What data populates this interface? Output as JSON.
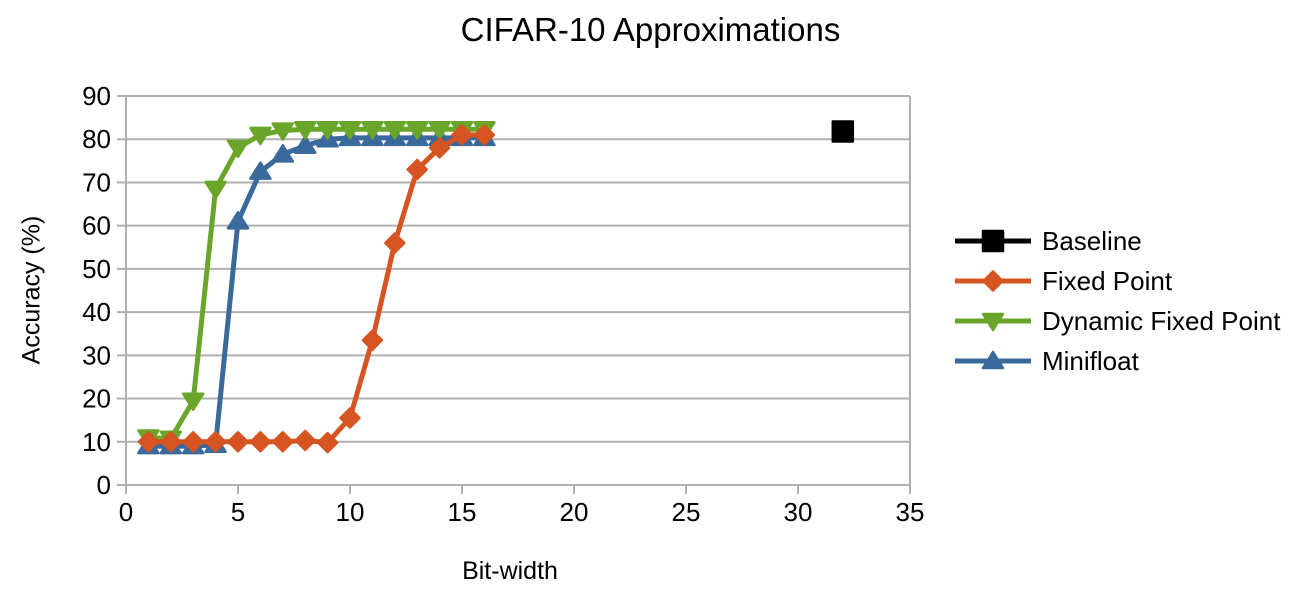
{
  "chart_data": {
    "type": "line",
    "title": "CIFAR-10 Approximations",
    "xlabel": "Bit-width",
    "ylabel": "Accuracy (%)",
    "xlim": [
      0,
      35
    ],
    "ylim": [
      0,
      90
    ],
    "x_ticks": [
      0,
      5,
      10,
      15,
      20,
      25,
      30,
      35
    ],
    "y_ticks": [
      0,
      10,
      20,
      30,
      40,
      50,
      60,
      70,
      80,
      90
    ],
    "grid": "horizontal-only",
    "legend_position": "right",
    "axis_color": "#b0b0b0",
    "text_color": "#000000",
    "background": "#ffffff",
    "series": [
      {
        "name": "Baseline",
        "color": "#000000",
        "marker": "square",
        "x": [
          32
        ],
        "y": [
          81.8
        ]
      },
      {
        "name": "Fixed Point",
        "color": "#d65422",
        "marker": "diamond",
        "x": [
          1,
          2,
          3,
          4,
          5,
          6,
          7,
          8,
          9,
          10,
          11,
          12,
          13,
          14,
          15,
          16
        ],
        "y": [
          10,
          10,
          10,
          10,
          10,
          10,
          10,
          10.3,
          9.8,
          15.5,
          33.5,
          56,
          73,
          78,
          81,
          81
        ]
      },
      {
        "name": "Dynamic Fixed Point",
        "color": "#69a528",
        "marker": "triangle-down",
        "x": [
          1,
          2,
          3,
          4,
          5,
          6,
          7,
          8,
          9,
          10,
          11,
          12,
          13,
          14,
          15,
          16
        ],
        "y": [
          11,
          10.7,
          19.5,
          68.5,
          78,
          81,
          82,
          82.3,
          82.3,
          82.3,
          82.3,
          82.3,
          82.3,
          82.3,
          82.3,
          82.3
        ]
      },
      {
        "name": "Minifloat",
        "color": "#3a699b",
        "marker": "triangle-up",
        "x": [
          1,
          2,
          3,
          4,
          5,
          6,
          7,
          8,
          9,
          10,
          11,
          12,
          13,
          14,
          15,
          16
        ],
        "y": [
          9,
          9,
          9,
          9.3,
          61,
          72.5,
          76.5,
          78.5,
          80,
          80.3,
          80.3,
          80.3,
          80.3,
          80.3,
          80.3,
          80.3
        ]
      }
    ],
    "draw_order": [
      3,
      2,
      1,
      0
    ]
  }
}
